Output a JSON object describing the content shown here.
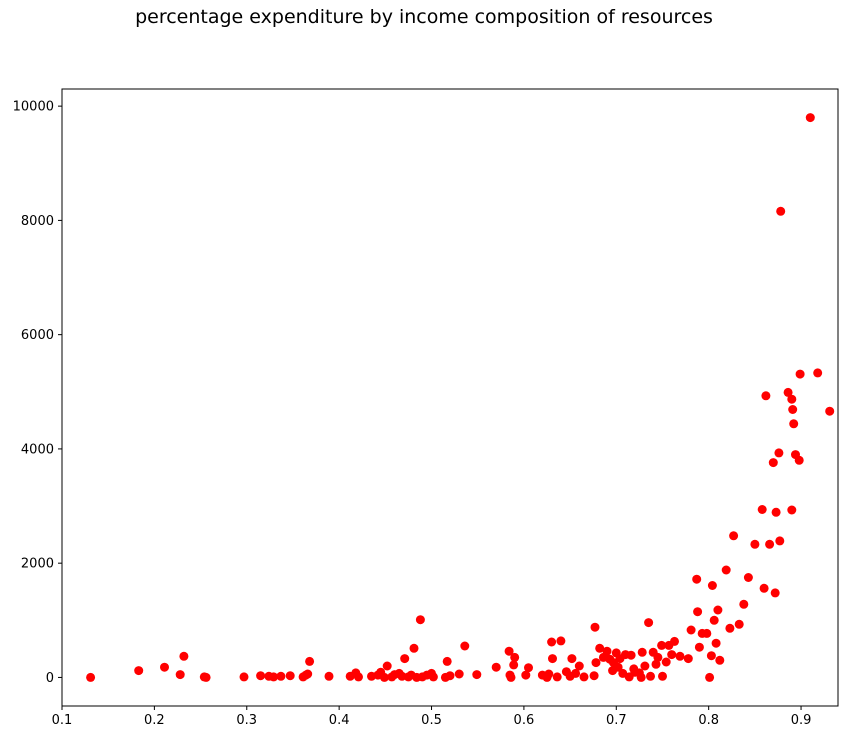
{
  "chart_data": {
    "type": "scatter",
    "title": "percentage expenditure by income composition of resources",
    "xlabel": "",
    "ylabel": "",
    "xlim": [
      0.1,
      0.94
    ],
    "ylim": [
      -500,
      10300
    ],
    "xticks": [
      0.1,
      0.2,
      0.3,
      0.4,
      0.5,
      0.6,
      0.7,
      0.8,
      0.9
    ],
    "yticks": [
      0,
      2000,
      4000,
      6000,
      8000,
      10000
    ],
    "grid": false,
    "marker_color": "#ff0000",
    "series": [
      {
        "points": [
          [
            0.131,
            0
          ],
          [
            0.183,
            120
          ],
          [
            0.211,
            180
          ],
          [
            0.228,
            50
          ],
          [
            0.232,
            370
          ],
          [
            0.254,
            10
          ],
          [
            0.256,
            0
          ],
          [
            0.297,
            10
          ],
          [
            0.315,
            30
          ],
          [
            0.324,
            20
          ],
          [
            0.329,
            10
          ],
          [
            0.337,
            20
          ],
          [
            0.347,
            30
          ],
          [
            0.361,
            10
          ],
          [
            0.364,
            40
          ],
          [
            0.366,
            60
          ],
          [
            0.368,
            280
          ],
          [
            0.389,
            20
          ],
          [
            0.412,
            20
          ],
          [
            0.418,
            80
          ],
          [
            0.421,
            10
          ],
          [
            0.435,
            20
          ],
          [
            0.442,
            40
          ],
          [
            0.445,
            90
          ],
          [
            0.449,
            0
          ],
          [
            0.452,
            200
          ],
          [
            0.457,
            10
          ],
          [
            0.46,
            50
          ],
          [
            0.465,
            70
          ],
          [
            0.468,
            20
          ],
          [
            0.471,
            330
          ],
          [
            0.475,
            10
          ],
          [
            0.478,
            40
          ],
          [
            0.481,
            510
          ],
          [
            0.484,
            0
          ],
          [
            0.488,
            1010
          ],
          [
            0.49,
            10
          ],
          [
            0.495,
            40
          ],
          [
            0.5,
            70
          ],
          [
            0.502,
            10
          ],
          [
            0.515,
            0
          ],
          [
            0.517,
            280
          ],
          [
            0.52,
            30
          ],
          [
            0.53,
            60
          ],
          [
            0.536,
            550
          ],
          [
            0.549,
            50
          ],
          [
            0.57,
            180
          ],
          [
            0.584,
            460
          ],
          [
            0.585,
            40
          ],
          [
            0.586,
            0
          ],
          [
            0.589,
            220
          ],
          [
            0.59,
            350
          ],
          [
            0.602,
            40
          ],
          [
            0.605,
            170
          ],
          [
            0.62,
            40
          ],
          [
            0.625,
            0
          ],
          [
            0.627,
            60
          ],
          [
            0.63,
            620
          ],
          [
            0.631,
            330
          ],
          [
            0.636,
            10
          ],
          [
            0.64,
            640
          ],
          [
            0.646,
            100
          ],
          [
            0.65,
            20
          ],
          [
            0.652,
            330
          ],
          [
            0.656,
            70
          ],
          [
            0.66,
            200
          ],
          [
            0.665,
            10
          ],
          [
            0.676,
            30
          ],
          [
            0.677,
            880
          ],
          [
            0.678,
            260
          ],
          [
            0.682,
            510
          ],
          [
            0.686,
            350
          ],
          [
            0.69,
            460
          ],
          [
            0.693,
            320
          ],
          [
            0.696,
            120
          ],
          [
            0.697,
            260
          ],
          [
            0.7,
            430
          ],
          [
            0.702,
            180
          ],
          [
            0.704,
            330
          ],
          [
            0.707,
            70
          ],
          [
            0.71,
            400
          ],
          [
            0.714,
            10
          ],
          [
            0.716,
            390
          ],
          [
            0.719,
            150
          ],
          [
            0.72,
            90
          ],
          [
            0.725,
            80
          ],
          [
            0.727,
            0
          ],
          [
            0.728,
            440
          ],
          [
            0.731,
            200
          ],
          [
            0.735,
            960
          ],
          [
            0.737,
            20
          ],
          [
            0.74,
            440
          ],
          [
            0.743,
            230
          ],
          [
            0.745,
            350
          ],
          [
            0.749,
            560
          ],
          [
            0.75,
            20
          ],
          [
            0.754,
            270
          ],
          [
            0.757,
            560
          ],
          [
            0.76,
            400
          ],
          [
            0.763,
            630
          ],
          [
            0.769,
            370
          ],
          [
            0.778,
            330
          ],
          [
            0.781,
            830
          ],
          [
            0.787,
            1720
          ],
          [
            0.788,
            1150
          ],
          [
            0.79,
            530
          ],
          [
            0.793,
            770
          ],
          [
            0.798,
            770
          ],
          [
            0.801,
            0
          ],
          [
            0.803,
            380
          ],
          [
            0.804,
            1610
          ],
          [
            0.806,
            1000
          ],
          [
            0.808,
            600
          ],
          [
            0.81,
            1180
          ],
          [
            0.812,
            300
          ],
          [
            0.819,
            1880
          ],
          [
            0.823,
            860
          ],
          [
            0.827,
            2480
          ],
          [
            0.833,
            930
          ],
          [
            0.838,
            1280
          ],
          [
            0.843,
            1750
          ],
          [
            0.85,
            2330
          ],
          [
            0.858,
            2940
          ],
          [
            0.86,
            1560
          ],
          [
            0.862,
            4930
          ],
          [
            0.866,
            2330
          ],
          [
            0.87,
            3760
          ],
          [
            0.872,
            1480
          ],
          [
            0.873,
            2890
          ],
          [
            0.876,
            3930
          ],
          [
            0.877,
            2390
          ],
          [
            0.878,
            8160
          ],
          [
            0.886,
            4990
          ],
          [
            0.89,
            4870
          ],
          [
            0.89,
            2930
          ],
          [
            0.891,
            4690
          ],
          [
            0.892,
            4440
          ],
          [
            0.894,
            3900
          ],
          [
            0.898,
            3800
          ],
          [
            0.899,
            5310
          ],
          [
            0.91,
            9800
          ],
          [
            0.918,
            5330
          ],
          [
            0.931,
            4660
          ]
        ]
      }
    ]
  }
}
